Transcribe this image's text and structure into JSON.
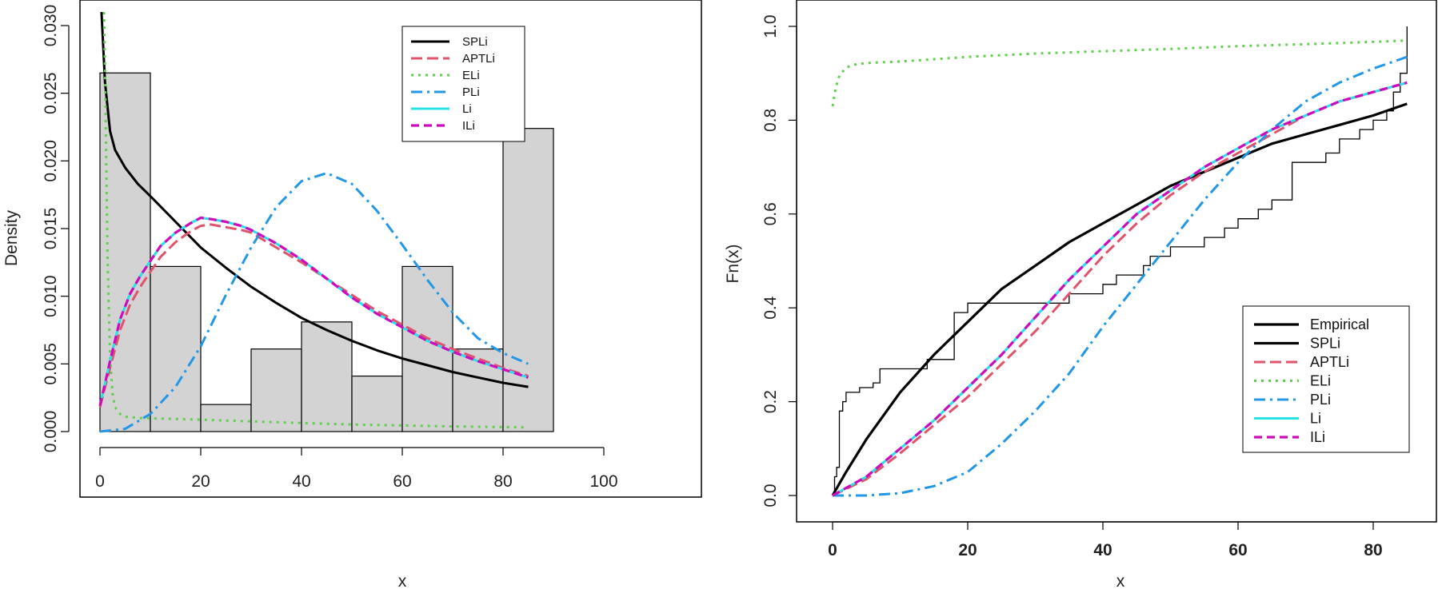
{
  "colors": {
    "SPLi": "#000000",
    "APTLi": "#DF536B",
    "ELi": "#61D04F",
    "PLi": "#2297E6",
    "Li": "#28E2E5",
    "ILi": "#CD0BBC",
    "Empirical": "#000000",
    "bar_fill": "#D3D3D3",
    "bar_stroke": "#000000"
  },
  "chart_data": [
    {
      "type": "histogram",
      "title": "",
      "xlabel": "x",
      "ylabel": "Density",
      "xlim": [
        0,
        100
      ],
      "ylim": [
        0,
        0.031
      ],
      "x_ticks": [
        "0",
        "20",
        "40",
        "60",
        "80",
        "100"
      ],
      "y_ticks": [
        "0.000",
        "0.005",
        "0.010",
        "0.015",
        "0.020",
        "0.025",
        "0.030"
      ],
      "bins": [
        0,
        10,
        20,
        30,
        40,
        50,
        60,
        70,
        80,
        90
      ],
      "values": [
        0.0265,
        0.0122,
        0.002,
        0.0061,
        0.0081,
        0.0041,
        0.0122,
        0.0061,
        0.0224
      ],
      "legend": {
        "position": "top-right",
        "entries": [
          "SPLi",
          "APTLi",
          "ELi",
          "PLi",
          "Li",
          "ILi"
        ]
      },
      "series": [
        {
          "name": "SPLi",
          "x": [
            0.3,
            1,
            2,
            3,
            5,
            7.5,
            10,
            15,
            20,
            25,
            30,
            35,
            40,
            45,
            50,
            55,
            60,
            65,
            70,
            75,
            80,
            85
          ],
          "y": [
            0.031,
            0.0258,
            0.0222,
            0.0208,
            0.0195,
            0.0183,
            0.0174,
            0.0155,
            0.0136,
            0.0121,
            0.0107,
            0.0095,
            0.0084,
            0.0075,
            0.0067,
            0.006,
            0.0054,
            0.0049,
            0.0044,
            0.004,
            0.0036,
            0.0033
          ]
        },
        {
          "name": "APTLi",
          "x": [
            0,
            2,
            4,
            6,
            8,
            10,
            12,
            15,
            18,
            20,
            22,
            25,
            28,
            30,
            35,
            40,
            45,
            50,
            55,
            60,
            65,
            70,
            75,
            80,
            85
          ],
          "y": [
            0.0018,
            0.0047,
            0.0075,
            0.0094,
            0.0107,
            0.0118,
            0.0129,
            0.014,
            0.0148,
            0.0152,
            0.0153,
            0.0151,
            0.0149,
            0.0147,
            0.0136,
            0.0125,
            0.0113,
            0.0101,
            0.0089,
            0.0079,
            0.0069,
            0.0061,
            0.0054,
            0.0047,
            0.0041
          ]
        },
        {
          "name": "ELi",
          "x": [
            0.8,
            1,
            1.5,
            2,
            2.5,
            3,
            4,
            5,
            8,
            10,
            20,
            30,
            40,
            50,
            60,
            70,
            80,
            85
          ],
          "y": [
            0.031,
            0.027,
            0.013,
            0.0055,
            0.0028,
            0.0018,
            0.0013,
            0.0011,
            0.001,
            0.00098,
            0.00088,
            0.00075,
            0.00063,
            0.00052,
            0.00045,
            0.00038,
            0.00033,
            0.0003
          ]
        },
        {
          "name": "PLi",
          "x": [
            0,
            5,
            10,
            15,
            20,
            25,
            30,
            35,
            40,
            45,
            50,
            55,
            60,
            65,
            70,
            75,
            80,
            85
          ],
          "y": [
            0.0,
            0.0002,
            0.0013,
            0.0033,
            0.0063,
            0.0101,
            0.0136,
            0.0166,
            0.0185,
            0.0191,
            0.0183,
            0.0163,
            0.0138,
            0.0112,
            0.0088,
            0.0069,
            0.0058,
            0.005
          ]
        },
        {
          "name": "Li",
          "x": [
            0,
            2,
            4,
            6,
            8,
            10,
            12,
            15,
            18,
            20,
            22,
            25,
            28,
            30,
            35,
            40,
            45,
            50,
            55,
            60,
            65,
            70,
            75,
            80,
            85
          ],
          "y": [
            0.0019,
            0.0052,
            0.0083,
            0.0102,
            0.0115,
            0.0126,
            0.0137,
            0.0147,
            0.0154,
            0.0158,
            0.0157,
            0.0155,
            0.0152,
            0.0149,
            0.0139,
            0.0127,
            0.0113,
            0.0099,
            0.0087,
            0.0077,
            0.0067,
            0.0059,
            0.0052,
            0.0046,
            0.004
          ]
        },
        {
          "name": "ILi",
          "x": [
            0,
            2,
            4,
            6,
            8,
            10,
            12,
            15,
            18,
            20,
            22,
            25,
            28,
            30,
            35,
            40,
            45,
            50,
            55,
            60,
            65,
            70,
            75,
            80,
            85
          ],
          "y": [
            0.0019,
            0.0052,
            0.0083,
            0.0102,
            0.0115,
            0.0126,
            0.0137,
            0.0147,
            0.0154,
            0.0158,
            0.0157,
            0.0155,
            0.0152,
            0.0149,
            0.0139,
            0.0127,
            0.0113,
            0.0099,
            0.0087,
            0.0077,
            0.0067,
            0.0059,
            0.0052,
            0.0046,
            0.004
          ]
        }
      ]
    },
    {
      "type": "line",
      "title": "",
      "xlabel": "x",
      "ylabel": "Fn(x)",
      "xlim": [
        -4,
        88
      ],
      "ylim": [
        -0.06,
        1.04
      ],
      "x_ticks": [
        "0",
        "20",
        "40",
        "60",
        "80"
      ],
      "y_ticks": [
        "0.0",
        "0.2",
        "0.4",
        "0.6",
        "0.8",
        "1.0"
      ],
      "legend": {
        "position": "bottom-right",
        "entries": [
          "Empirical",
          "SPLi",
          "APTLi",
          "ELi",
          "PLi",
          "Li",
          "ILi"
        ]
      },
      "empirical": {
        "x": [
          0,
          0.3,
          0.6,
          1,
          1.5,
          2,
          3,
          4,
          5,
          6,
          7,
          8,
          10,
          12,
          14,
          15,
          16,
          18,
          20,
          22,
          25,
          28,
          32,
          35,
          38,
          40,
          42,
          44,
          46,
          47,
          48,
          50,
          55,
          58,
          60,
          63,
          65,
          68,
          70,
          73,
          75,
          78,
          80,
          82,
          83,
          84,
          85
        ],
        "y": [
          0.0,
          0.04,
          0.06,
          0.18,
          0.2,
          0.22,
          0.22,
          0.23,
          0.23,
          0.24,
          0.27,
          0.27,
          0.27,
          0.27,
          0.29,
          0.29,
          0.29,
          0.39,
          0.41,
          0.41,
          0.41,
          0.41,
          0.41,
          0.43,
          0.43,
          0.45,
          0.47,
          0.47,
          0.49,
          0.51,
          0.51,
          0.53,
          0.55,
          0.57,
          0.59,
          0.61,
          0.63,
          0.71,
          0.71,
          0.73,
          0.76,
          0.78,
          0.8,
          0.82,
          0.86,
          0.9,
          1.0
        ]
      },
      "series": [
        {
          "name": "SPLi",
          "x": [
            0,
            2,
            5,
            10,
            15,
            20,
            25,
            30,
            35,
            40,
            45,
            50,
            55,
            60,
            65,
            70,
            75,
            80,
            85
          ],
          "y": [
            0.0,
            0.05,
            0.12,
            0.22,
            0.3,
            0.37,
            0.44,
            0.49,
            0.54,
            0.58,
            0.62,
            0.66,
            0.69,
            0.72,
            0.75,
            0.77,
            0.79,
            0.81,
            0.835
          ]
        },
        {
          "name": "APTLi",
          "x": [
            0,
            5,
            10,
            15,
            20,
            25,
            30,
            35,
            40,
            45,
            50,
            55,
            60,
            65,
            70,
            75,
            80,
            85
          ],
          "y": [
            0.0,
            0.035,
            0.09,
            0.15,
            0.21,
            0.28,
            0.35,
            0.43,
            0.51,
            0.58,
            0.64,
            0.69,
            0.73,
            0.77,
            0.81,
            0.84,
            0.86,
            0.88
          ]
        },
        {
          "name": "ELi",
          "x": [
            0,
            0.5,
            1,
            2,
            3,
            5,
            10,
            20,
            30,
            40,
            50,
            60,
            70,
            80,
            85
          ],
          "y": [
            0.83,
            0.87,
            0.895,
            0.912,
            0.918,
            0.922,
            0.925,
            0.935,
            0.942,
            0.947,
            0.952,
            0.958,
            0.962,
            0.967,
            0.97
          ]
        },
        {
          "name": "PLi",
          "x": [
            0,
            5,
            10,
            15,
            20,
            25,
            30,
            35,
            40,
            45,
            50,
            55,
            60,
            65,
            70,
            75,
            80,
            85
          ],
          "y": [
            0.0,
            0.0,
            0.005,
            0.02,
            0.05,
            0.11,
            0.18,
            0.26,
            0.36,
            0.45,
            0.54,
            0.63,
            0.71,
            0.78,
            0.84,
            0.88,
            0.91,
            0.935
          ]
        },
        {
          "name": "Li",
          "x": [
            0,
            5,
            10,
            15,
            20,
            25,
            30,
            35,
            40,
            45,
            50,
            55,
            60,
            65,
            70,
            75,
            80,
            85
          ],
          "y": [
            0.0,
            0.04,
            0.1,
            0.16,
            0.23,
            0.3,
            0.38,
            0.46,
            0.53,
            0.6,
            0.65,
            0.7,
            0.74,
            0.78,
            0.81,
            0.84,
            0.86,
            0.88
          ]
        },
        {
          "name": "ILi",
          "x": [
            0,
            5,
            10,
            15,
            20,
            25,
            30,
            35,
            40,
            45,
            50,
            55,
            60,
            65,
            70,
            75,
            80,
            85
          ],
          "y": [
            0.0,
            0.04,
            0.1,
            0.16,
            0.23,
            0.3,
            0.38,
            0.46,
            0.53,
            0.6,
            0.65,
            0.7,
            0.74,
            0.78,
            0.81,
            0.84,
            0.86,
            0.88
          ]
        }
      ]
    }
  ]
}
